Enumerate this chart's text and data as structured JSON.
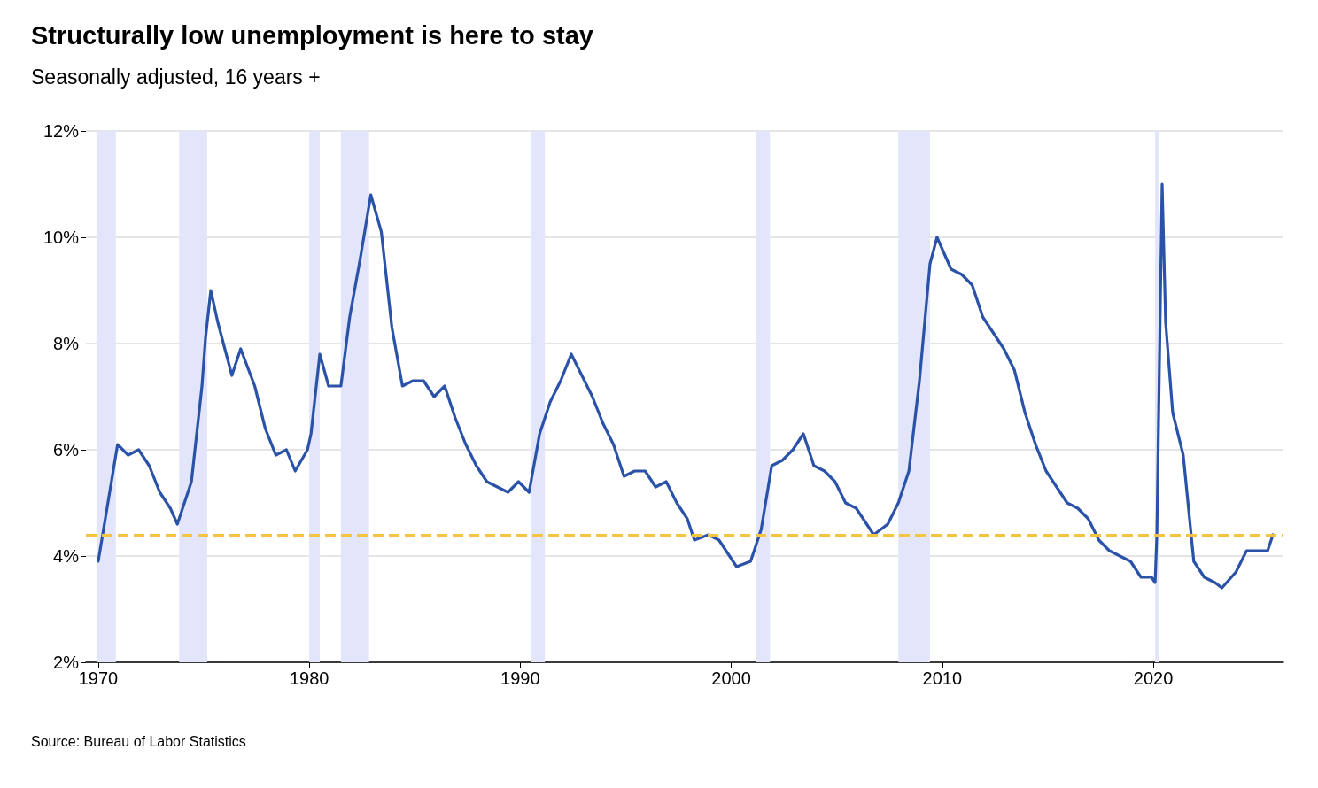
{
  "chart_data": {
    "type": "line",
    "title": "Structurally low unemployment is here to stay",
    "subtitle": "Seasonally adjusted, 16 years +",
    "annotations": [
      "Source: Bureau of Labor Statistics"
    ],
    "series": [
      {
        "color": "#2a52a8",
        "x": [
          "1970-01",
          "1970-06",
          "1970-12",
          "1971-06",
          "1971-12",
          "1972-06",
          "1972-12",
          "1973-06",
          "1973-10",
          "1974-06",
          "1974-12",
          "1975-02",
          "1975-05",
          "1975-09",
          "1976-01",
          "1976-05",
          "1976-10",
          "1977-06",
          "1977-12",
          "1978-06",
          "1978-12",
          "1979-05",
          "1979-12",
          "1980-02",
          "1980-07",
          "1980-12",
          "1981-07",
          "1981-12",
          "1982-06",
          "1982-12",
          "1983-06",
          "1983-12",
          "1984-06",
          "1984-12",
          "1985-06",
          "1985-12",
          "1986-06",
          "1986-12",
          "1987-06",
          "1987-12",
          "1988-06",
          "1988-12",
          "1989-06",
          "1989-12",
          "1990-06",
          "1990-12",
          "1991-06",
          "1991-12",
          "1992-06",
          "1992-12",
          "1993-06",
          "1993-12",
          "1994-06",
          "1994-12",
          "1995-06",
          "1995-12",
          "1996-06",
          "1996-12",
          "1997-06",
          "1997-12",
          "1998-04",
          "1998-12",
          "1999-06",
          "1999-12",
          "2000-04",
          "2000-12",
          "2001-06",
          "2001-12",
          "2002-06",
          "2002-12",
          "2003-06",
          "2003-12",
          "2004-06",
          "2004-12",
          "2005-06",
          "2005-12",
          "2006-06",
          "2006-10",
          "2007-06",
          "2007-12",
          "2008-06",
          "2008-12",
          "2009-06",
          "2009-10",
          "2010-06",
          "2010-12",
          "2011-06",
          "2011-12",
          "2012-06",
          "2012-12",
          "2013-06",
          "2013-12",
          "2014-06",
          "2014-12",
          "2015-06",
          "2015-12",
          "2016-06",
          "2016-12",
          "2017-06",
          "2017-12",
          "2018-06",
          "2018-12",
          "2019-06",
          "2019-12",
          "2020-02",
          "2020-03",
          "2020-04",
          "2020-05",
          "2020-06",
          "2020-08",
          "2020-12",
          "2021-06",
          "2021-12",
          "2022-06",
          "2022-12",
          "2023-04",
          "2023-12",
          "2024-06",
          "2024-12",
          "2025-06",
          "2025-09"
        ],
        "values": [
          3.9,
          4.9,
          6.1,
          5.9,
          6.0,
          5.7,
          5.2,
          4.9,
          4.6,
          5.4,
          7.2,
          8.1,
          9.0,
          8.4,
          7.9,
          7.4,
          7.9,
          7.2,
          6.4,
          5.9,
          6.0,
          5.6,
          6.0,
          6.3,
          7.8,
          7.2,
          7.2,
          8.5,
          9.6,
          10.8,
          10.1,
          8.3,
          7.2,
          7.3,
          7.3,
          7.0,
          7.2,
          6.6,
          6.1,
          5.7,
          5.4,
          5.3,
          5.2,
          5.4,
          5.2,
          6.3,
          6.9,
          7.3,
          7.8,
          7.4,
          7.0,
          6.5,
          6.1,
          5.5,
          5.6,
          5.6,
          5.3,
          5.4,
          5.0,
          4.7,
          4.3,
          4.4,
          4.3,
          4.0,
          3.8,
          3.9,
          4.5,
          5.7,
          5.8,
          6.0,
          6.3,
          5.7,
          5.6,
          5.4,
          5.0,
          4.9,
          4.6,
          4.4,
          4.6,
          5.0,
          5.6,
          7.3,
          9.5,
          10.0,
          9.4,
          9.3,
          9.1,
          8.5,
          8.2,
          7.9,
          7.5,
          6.7,
          6.1,
          5.6,
          5.3,
          5.0,
          4.9,
          4.7,
          4.3,
          4.1,
          4.0,
          3.9,
          3.6,
          3.6,
          3.5,
          4.4,
          null,
          null,
          11.0,
          8.4,
          6.7,
          5.9,
          3.9,
          3.6,
          3.5,
          3.4,
          3.7,
          4.1,
          4.1,
          4.1,
          4.4
        ]
      }
    ],
    "xlim": [
      "1969-06",
      "2026-03"
    ],
    "xticks": [
      "1970",
      "1980",
      "1990",
      "2000",
      "2010",
      "2020"
    ],
    "ylim": [
      2,
      12
    ],
    "yticks": [
      {
        "value": 2,
        "label": "2%"
      },
      {
        "value": 4,
        "label": "4%"
      },
      {
        "value": 6,
        "label": "6%"
      },
      {
        "value": 8,
        "label": "8%"
      },
      {
        "value": 10,
        "label": "10%"
      },
      {
        "value": 12,
        "label": "12%"
      }
    ],
    "grid": "y",
    "marker": "none",
    "line_style": "solid",
    "ref_lines": [
      {
        "axis": "y",
        "value": 4.4,
        "color": "#f5c342",
        "line_style": "dashed"
      }
    ],
    "bands": [
      {
        "axis": "x",
        "from": "1969-12",
        "to": "1970-11",
        "color": "#e3e6fb"
      },
      {
        "axis": "x",
        "from": "1973-11",
        "to": "1975-03",
        "color": "#e3e6fb"
      },
      {
        "axis": "x",
        "from": "1980-01",
        "to": "1980-07",
        "color": "#e3e6fb"
      },
      {
        "axis": "x",
        "from": "1981-07",
        "to": "1982-11",
        "color": "#e3e6fb"
      },
      {
        "axis": "x",
        "from": "1990-07",
        "to": "1991-03",
        "color": "#e3e6fb"
      },
      {
        "axis": "x",
        "from": "2001-03",
        "to": "2001-11",
        "color": "#e3e6fb"
      },
      {
        "axis": "x",
        "from": "2007-12",
        "to": "2009-06",
        "color": "#e3e6fb"
      },
      {
        "axis": "x",
        "from": "2020-02",
        "to": "2020-04",
        "color": "#e3e6fb"
      }
    ]
  }
}
